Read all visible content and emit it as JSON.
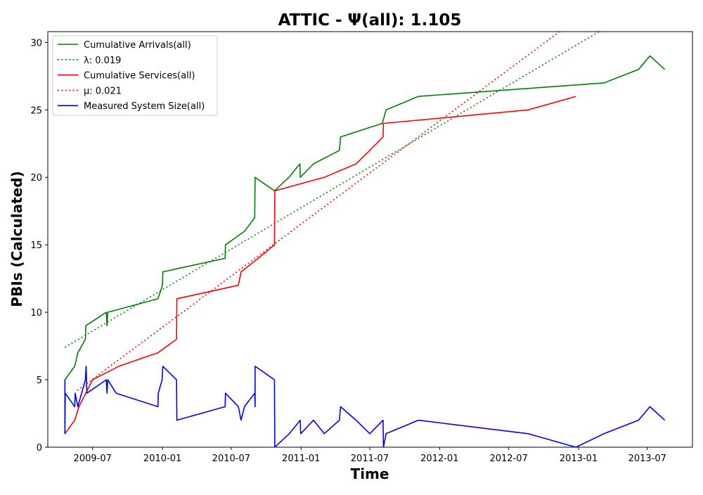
{
  "chart_data": {
    "type": "line",
    "title": "ATTIC -  Ψ(all): 1.105",
    "xlabel": "Time",
    "ylabel": "PBIs (Calculated)",
    "xlim": [
      "2009-03-05",
      "2013-10-28"
    ],
    "ylim": [
      0,
      30.8
    ],
    "yticks": [
      0,
      5,
      10,
      15,
      20,
      25,
      30
    ],
    "xticks": [
      {
        "date": "2009-07-01",
        "label": "2009-07"
      },
      {
        "date": "2010-01-01",
        "label": "2010-01"
      },
      {
        "date": "2010-07-01",
        "label": "2010-07"
      },
      {
        "date": "2011-01-01",
        "label": "2011-01"
      },
      {
        "date": "2011-07-01",
        "label": "2011-07"
      },
      {
        "date": "2012-01-01",
        "label": "2012-01"
      },
      {
        "date": "2012-07-01",
        "label": "2012-07"
      },
      {
        "date": "2013-01-01",
        "label": "2013-01"
      },
      {
        "date": "2013-07-01",
        "label": "2013-07"
      }
    ],
    "grid": false,
    "legend_position": "upper-left",
    "series": [
      {
        "name": "Cumulative Arrivals(all)",
        "color": "#008000",
        "style": "solid",
        "points": [
          [
            "2009-04-19",
            5
          ],
          [
            "2009-05-15",
            6
          ],
          [
            "2009-05-23",
            7
          ],
          [
            "2009-06-12",
            8
          ],
          [
            "2009-06-13",
            9
          ],
          [
            "2009-08-06",
            10
          ],
          [
            "2009-08-08",
            9
          ],
          [
            "2009-08-10",
            10
          ],
          [
            "2009-12-20",
            11
          ],
          [
            "2010-01-01",
            12
          ],
          [
            "2010-01-02",
            13
          ],
          [
            "2010-06-15",
            14
          ],
          [
            "2010-06-16",
            15
          ],
          [
            "2010-08-05",
            16
          ],
          [
            "2010-09-01",
            17
          ],
          [
            "2010-09-02",
            20
          ],
          [
            "2010-10-23",
            19
          ],
          [
            "2010-11-30",
            20
          ],
          [
            "2010-12-29",
            21
          ],
          [
            "2010-12-30",
            20
          ],
          [
            "2011-02-03",
            21
          ],
          [
            "2011-04-12",
            22
          ],
          [
            "2011-04-15",
            23
          ],
          [
            "2011-08-03",
            24
          ],
          [
            "2011-08-13",
            25
          ],
          [
            "2011-11-06",
            26
          ],
          [
            "2013-03-09",
            27
          ],
          [
            "2013-06-08",
            28
          ],
          [
            "2013-07-08",
            29
          ],
          [
            "2013-08-16",
            28
          ]
        ]
      },
      {
        "name": "λ: 0.019",
        "color": "#008000",
        "style": "dotted",
        "points": [
          [
            "2009-04-19",
            7.4
          ],
          [
            "2013-03-20",
            31.2
          ]
        ]
      },
      {
        "name": "Cumulative Services(all)",
        "color": "#ff0000",
        "style": "solid",
        "points": [
          [
            "2009-04-19",
            1
          ],
          [
            "2009-05-15",
            2
          ],
          [
            "2009-05-26",
            3
          ],
          [
            "2009-07-01",
            5
          ],
          [
            "2009-09-08",
            6
          ],
          [
            "2009-12-20",
            7
          ],
          [
            "2010-02-07",
            8
          ],
          [
            "2010-02-08",
            11
          ],
          [
            "2010-07-20",
            12
          ],
          [
            "2010-07-27",
            13
          ],
          [
            "2010-09-10",
            14
          ],
          [
            "2010-10-23",
            15
          ],
          [
            "2010-10-24",
            19
          ],
          [
            "2011-03-03",
            20
          ],
          [
            "2011-05-26",
            21
          ],
          [
            "2011-07-01",
            22
          ],
          [
            "2011-08-05",
            23
          ],
          [
            "2011-08-06",
            24
          ],
          [
            "2012-08-21",
            25
          ],
          [
            "2012-12-25",
            26
          ]
        ]
      },
      {
        "name": "μ: 0.021",
        "color": "#ff0000",
        "style": "dotted",
        "points": [
          [
            "2009-05-22",
            4.2
          ],
          [
            "2012-12-01",
            31.2
          ]
        ]
      },
      {
        "name": "Measured System Size(all)",
        "color": "#0000ff",
        "style": "solid",
        "points": [
          [
            "2009-04-19",
            5
          ],
          [
            "2009-04-19",
            1
          ],
          [
            "2009-04-20",
            4
          ],
          [
            "2009-05-15",
            3
          ],
          [
            "2009-05-16",
            4
          ],
          [
            "2009-05-23",
            3
          ],
          [
            "2009-06-12",
            5
          ],
          [
            "2009-06-14",
            6
          ],
          [
            "2009-06-16",
            4
          ],
          [
            "2009-08-06",
            5
          ],
          [
            "2009-08-08",
            4
          ],
          [
            "2009-08-10",
            5
          ],
          [
            "2009-09-01",
            4
          ],
          [
            "2009-12-20",
            3
          ],
          [
            "2009-12-21",
            4
          ],
          [
            "2009-12-31",
            5
          ],
          [
            "2010-01-02",
            6
          ],
          [
            "2010-02-07",
            5
          ],
          [
            "2010-02-08",
            2
          ],
          [
            "2010-06-15",
            3
          ],
          [
            "2010-06-16",
            4
          ],
          [
            "2010-07-20",
            3
          ],
          [
            "2010-07-27",
            2
          ],
          [
            "2010-08-05",
            3
          ],
          [
            "2010-09-01",
            4
          ],
          [
            "2010-09-02",
            3
          ],
          [
            "2010-09-02",
            6
          ],
          [
            "2010-10-23",
            5
          ],
          [
            "2010-10-24",
            0
          ],
          [
            "2010-12-01",
            1
          ],
          [
            "2010-12-30",
            2
          ],
          [
            "2010-12-31",
            1
          ],
          [
            "2011-02-03",
            2
          ],
          [
            "2011-03-03",
            1
          ],
          [
            "2011-04-12",
            2
          ],
          [
            "2011-04-15",
            3
          ],
          [
            "2011-05-26",
            2
          ],
          [
            "2011-07-01",
            1
          ],
          [
            "2011-08-05",
            2
          ],
          [
            "2011-08-06",
            0
          ],
          [
            "2011-08-13",
            1
          ],
          [
            "2011-11-06",
            2
          ],
          [
            "2012-08-21",
            1
          ],
          [
            "2012-12-25",
            0
          ],
          [
            "2013-03-09",
            1
          ],
          [
            "2013-06-08",
            2
          ],
          [
            "2013-07-08",
            3
          ],
          [
            "2013-08-16",
            2
          ]
        ]
      }
    ]
  }
}
